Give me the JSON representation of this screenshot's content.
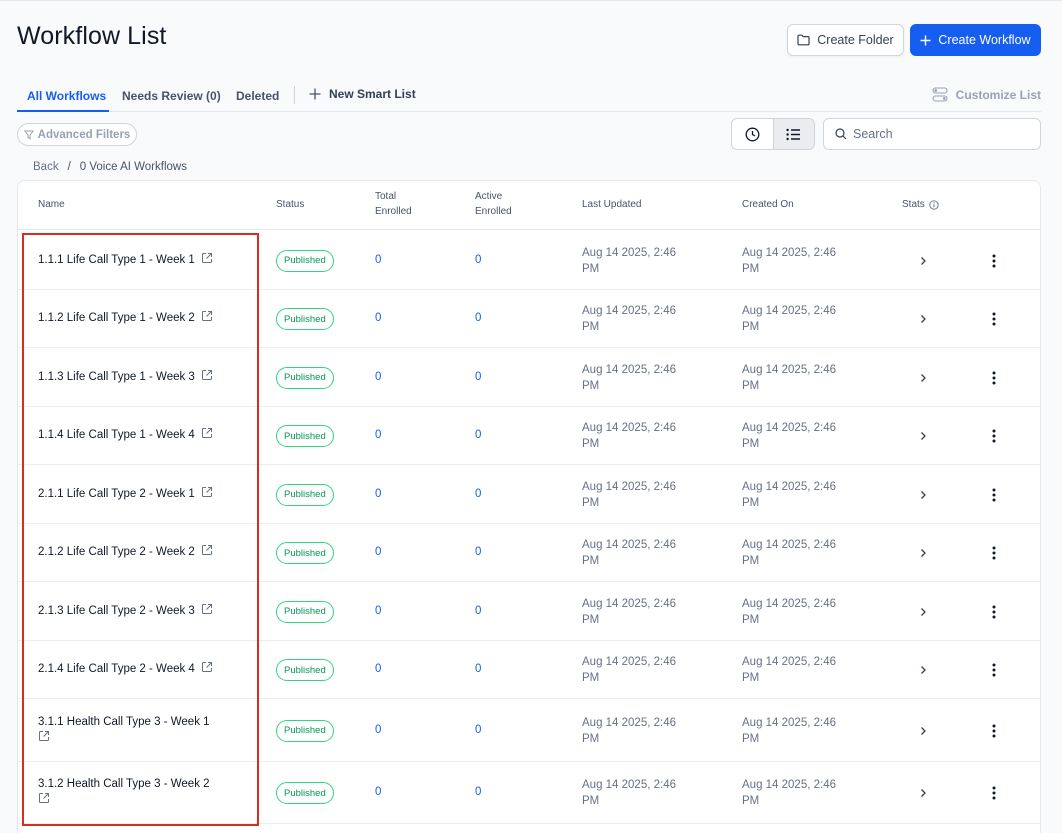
{
  "page": {
    "title": "Workflow List"
  },
  "header": {
    "create_folder_label": "Create Folder",
    "create_workflow_label": "Create Workflow"
  },
  "tabs": [
    {
      "label": "All Workflows",
      "active": true
    },
    {
      "label": "Needs Review (0)",
      "active": false
    },
    {
      "label": "Deleted",
      "active": false
    }
  ],
  "toolbar": {
    "new_smart_list_label": "New Smart List",
    "customize_list_label": "Customize List",
    "advanced_filters_label": "Advanced Filters",
    "search_placeholder": "Search"
  },
  "breadcrumb": {
    "back": "Back",
    "separator": "/",
    "current": "0 Voice AI Workflows"
  },
  "table": {
    "columns": {
      "name": "Name",
      "status": "Status",
      "total_enrolled_line1": "Total",
      "total_enrolled_line2": "Enrolled",
      "active_enrolled_line1": "Active",
      "active_enrolled_line2": "Enrolled",
      "last_updated": "Last Updated",
      "created_on": "Created On",
      "stats": "Stats"
    },
    "rows": [
      {
        "name": "1.1.1 Life Call Type 1 - Week 1",
        "status": "Published",
        "total_enrolled": "0",
        "active_enrolled": "0",
        "updated_line1": "Aug 14 2025, 2:46",
        "updated_line2": "PM",
        "created_line1": "Aug 14 2025, 2:46",
        "created_line2": "PM"
      },
      {
        "name": "1.1.2 Life Call Type 1 - Week 2",
        "status": "Published",
        "total_enrolled": "0",
        "active_enrolled": "0",
        "updated_line1": "Aug 14 2025, 2:46",
        "updated_line2": "PM",
        "created_line1": "Aug 14 2025, 2:46",
        "created_line2": "PM"
      },
      {
        "name": "1.1.3 Life Call Type 1 - Week 3",
        "status": "Published",
        "total_enrolled": "0",
        "active_enrolled": "0",
        "updated_line1": "Aug 14 2025, 2:46",
        "updated_line2": "PM",
        "created_line1": "Aug 14 2025, 2:46",
        "created_line2": "PM"
      },
      {
        "name": "1.1.4 Life Call Type 1 - Week 4",
        "status": "Published",
        "total_enrolled": "0",
        "active_enrolled": "0",
        "updated_line1": "Aug 14 2025, 2:46",
        "updated_line2": "PM",
        "created_line1": "Aug 14 2025, 2:46",
        "created_line2": "PM"
      },
      {
        "name": "2.1.1 Life Call Type 2 - Week 1",
        "status": "Published",
        "total_enrolled": "0",
        "active_enrolled": "0",
        "updated_line1": "Aug 14 2025, 2:46",
        "updated_line2": "PM",
        "created_line1": "Aug 14 2025, 2:46",
        "created_line2": "PM"
      },
      {
        "name": "2.1.2 Life Call Type 2 - Week 2",
        "status": "Published",
        "total_enrolled": "0",
        "active_enrolled": "0",
        "updated_line1": "Aug 14 2025, 2:46",
        "updated_line2": "PM",
        "created_line1": "Aug 14 2025, 2:46",
        "created_line2": "PM"
      },
      {
        "name": "2.1.3 Life Call Type 2 - Week 3",
        "status": "Published",
        "total_enrolled": "0",
        "active_enrolled": "0",
        "updated_line1": "Aug 14 2025, 2:46",
        "updated_line2": "PM",
        "created_line1": "Aug 14 2025, 2:46",
        "created_line2": "PM"
      },
      {
        "name": "2.1.4 Life Call Type 2 - Week 4",
        "status": "Published",
        "total_enrolled": "0",
        "active_enrolled": "0",
        "updated_line1": "Aug 14 2025, 2:46",
        "updated_line2": "PM",
        "created_line1": "Aug 14 2025, 2:46",
        "created_line2": "PM"
      },
      {
        "name": "3.1.1 Health Call Type 3 - Week 1",
        "status": "Published",
        "total_enrolled": "0",
        "active_enrolled": "0",
        "updated_line1": "Aug 14 2025, 2:46",
        "updated_line2": "PM",
        "created_line1": "Aug 14 2025, 2:46",
        "created_line2": "PM"
      },
      {
        "name": "3.1.2 Health Call Type 3 - Week 2",
        "status": "Published",
        "total_enrolled": "0",
        "active_enrolled": "0",
        "updated_line1": "Aug 14 2025, 2:46",
        "updated_line2": "PM",
        "created_line1": "Aug 14 2025, 2:46",
        "created_line2": "PM"
      }
    ]
  },
  "icons": {
    "folder": "folder-icon",
    "plus": "plus-icon",
    "customize": "toggles-icon",
    "filter": "filter-icon",
    "clock": "clock-icon",
    "list": "list-icon",
    "search": "search-icon",
    "info": "info-icon",
    "external": "external-link-icon",
    "chevron": "chevron-right-icon",
    "more": "more-vertical-icon"
  },
  "colors": {
    "accent": "#155eef",
    "success": "#039855",
    "highlight": "#d92d20"
  }
}
